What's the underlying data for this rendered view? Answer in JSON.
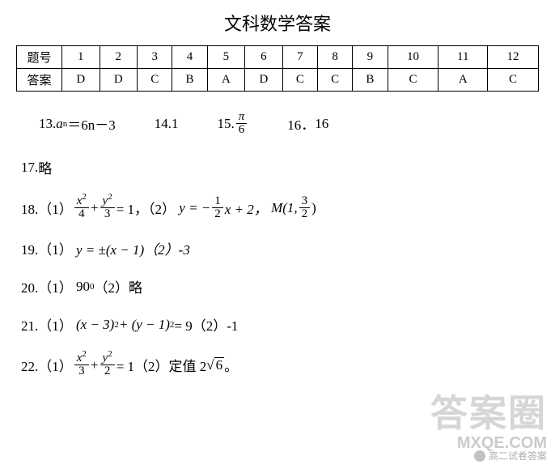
{
  "title": "文科数学答案",
  "table": {
    "row_header_1": "题号",
    "row_header_2": "答案",
    "nums": [
      "1",
      "2",
      "3",
      "4",
      "5",
      "6",
      "7",
      "8",
      "9",
      "10",
      "11",
      "12"
    ],
    "ans": [
      "D",
      "D",
      "C",
      "B",
      "A",
      "D",
      "C",
      "C",
      "B",
      "C",
      "A",
      "C"
    ]
  },
  "fill": {
    "q13_label": "13.",
    "q13_expr_lhs": "a",
    "q13_expr_sub": "n",
    "q13_expr_eq": "＝6n－3",
    "q14_label": "14.",
    "q14_val": "1",
    "q15_label": "15.",
    "q15_num": "π",
    "q15_den": "6",
    "q16_label": "16．",
    "q16_val": "16"
  },
  "q17": {
    "label": "17.",
    "text": "略"
  },
  "q18": {
    "label": "18.（1）",
    "t1_num": "x",
    "t1_den": "4",
    "plus": "+",
    "t2_num": "y",
    "t2_den": "3",
    "eq1": "= 1，（2）",
    "rhs_pre": "y = −",
    "rhs_num": "1",
    "rhs_den": "2",
    "rhs_post": "x + 2，",
    "m_pre": "M(1, ",
    "m_num": "3",
    "m_den": "2",
    "m_post": ")"
  },
  "q19": {
    "label": "19.（1）",
    "expr": "y = ±(x − 1)（2）-3"
  },
  "q20": {
    "label": "20.（1）",
    "expr_base": "90",
    "expr_sup": "0",
    "tail": "（2）略"
  },
  "q21": {
    "label": "21.（1）",
    "expr": "(x − 3)",
    "sup1": "2",
    "mid": " + (y − 1)",
    "sup2": "2",
    "tail": " = 9（2）-1"
  },
  "q22": {
    "label": "22.（1）",
    "t1_num": "x",
    "t1_den": "3",
    "plus": "+",
    "t2_num": "y",
    "t2_den": "2",
    "eq1": "= 1（2）定值 2",
    "sqrt": "6",
    "end": " 。"
  },
  "watermark": {
    "big": "答案圈",
    "site": "MXQE.COM",
    "small": "高二试卷答案"
  }
}
